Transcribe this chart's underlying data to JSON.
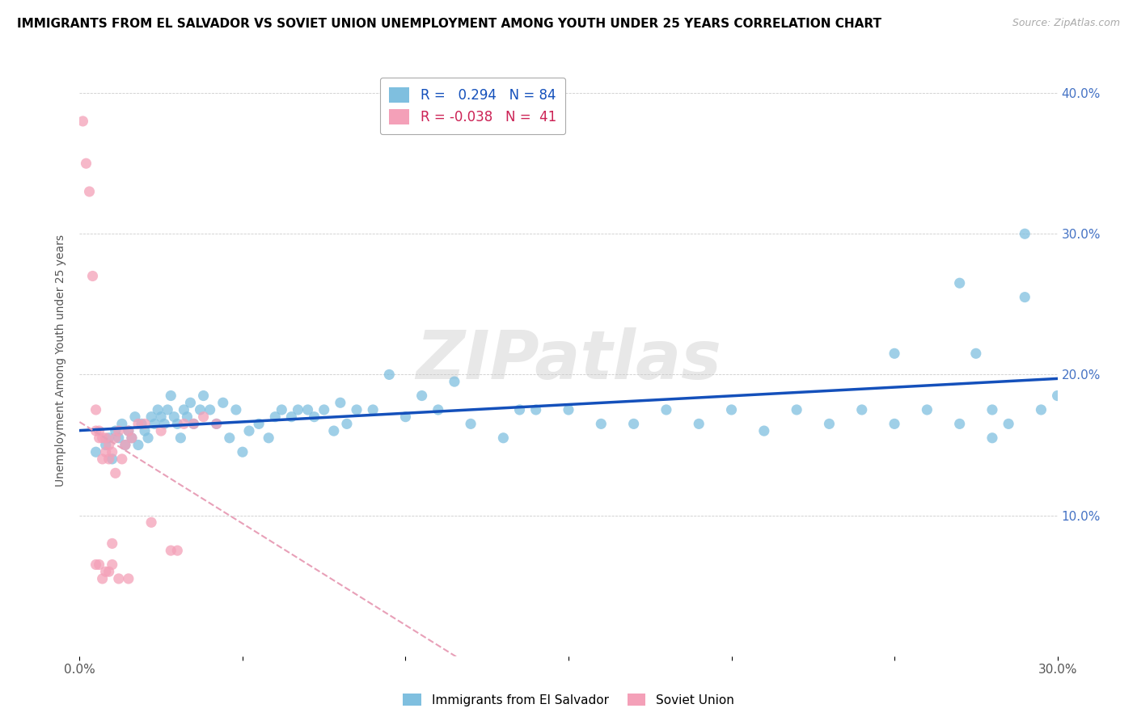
{
  "title": "IMMIGRANTS FROM EL SALVADOR VS SOVIET UNION UNEMPLOYMENT AMONG YOUTH UNDER 25 YEARS CORRELATION CHART",
  "source": "Source: ZipAtlas.com",
  "ylabel": "Unemployment Among Youth under 25 years",
  "xlim": [
    0.0,
    0.3
  ],
  "ylim": [
    0.0,
    0.42
  ],
  "xticks": [
    0.0,
    0.05,
    0.1,
    0.15,
    0.2,
    0.25,
    0.3
  ],
  "xtick_labels": [
    "0.0%",
    "",
    "",
    "",
    "",
    "",
    "30.0%"
  ],
  "yticks": [
    0.0,
    0.1,
    0.2,
    0.3,
    0.4
  ],
  "ytick_labels_right": [
    "",
    "10.0%",
    "20.0%",
    "30.0%",
    "40.0%"
  ],
  "blue_R": 0.294,
  "blue_N": 84,
  "pink_R": -0.038,
  "pink_N": 41,
  "blue_color": "#7fbfdf",
  "pink_color": "#f4a0b8",
  "blue_trend_color": "#1450bb",
  "pink_trend_color": "#e8a0b8",
  "watermark": "ZIPatlas",
  "legend_label_blue": "Immigrants from El Salvador",
  "legend_label_pink": "Soviet Union",
  "blue_x": [
    0.005,
    0.008,
    0.009,
    0.01,
    0.011,
    0.012,
    0.013,
    0.014,
    0.015,
    0.016,
    0.017,
    0.018,
    0.019,
    0.02,
    0.021,
    0.022,
    0.023,
    0.024,
    0.025,
    0.026,
    0.027,
    0.028,
    0.029,
    0.03,
    0.031,
    0.032,
    0.033,
    0.034,
    0.035,
    0.037,
    0.038,
    0.04,
    0.042,
    0.044,
    0.046,
    0.048,
    0.05,
    0.052,
    0.055,
    0.058,
    0.06,
    0.062,
    0.065,
    0.067,
    0.07,
    0.072,
    0.075,
    0.078,
    0.08,
    0.082,
    0.085,
    0.09,
    0.095,
    0.1,
    0.105,
    0.11,
    0.115,
    0.12,
    0.13,
    0.135,
    0.14,
    0.15,
    0.16,
    0.17,
    0.18,
    0.19,
    0.2,
    0.21,
    0.22,
    0.23,
    0.24,
    0.25,
    0.26,
    0.27,
    0.275,
    0.28,
    0.285,
    0.29,
    0.295,
    0.3,
    0.25,
    0.27,
    0.28,
    0.29
  ],
  "blue_y": [
    0.145,
    0.15,
    0.155,
    0.14,
    0.16,
    0.155,
    0.165,
    0.15,
    0.16,
    0.155,
    0.17,
    0.15,
    0.165,
    0.16,
    0.155,
    0.17,
    0.165,
    0.175,
    0.17,
    0.165,
    0.175,
    0.185,
    0.17,
    0.165,
    0.155,
    0.175,
    0.17,
    0.18,
    0.165,
    0.175,
    0.185,
    0.175,
    0.165,
    0.18,
    0.155,
    0.175,
    0.145,
    0.16,
    0.165,
    0.155,
    0.17,
    0.175,
    0.17,
    0.175,
    0.175,
    0.17,
    0.175,
    0.16,
    0.18,
    0.165,
    0.175,
    0.175,
    0.2,
    0.17,
    0.185,
    0.175,
    0.195,
    0.165,
    0.155,
    0.175,
    0.175,
    0.175,
    0.165,
    0.165,
    0.175,
    0.165,
    0.175,
    0.16,
    0.175,
    0.165,
    0.175,
    0.165,
    0.175,
    0.165,
    0.215,
    0.175,
    0.165,
    0.3,
    0.175,
    0.185,
    0.215,
    0.265,
    0.155,
    0.255
  ],
  "pink_x": [
    0.001,
    0.002,
    0.003,
    0.004,
    0.005,
    0.005,
    0.006,
    0.006,
    0.007,
    0.007,
    0.008,
    0.008,
    0.009,
    0.009,
    0.01,
    0.01,
    0.011,
    0.011,
    0.012,
    0.013,
    0.014,
    0.015,
    0.016,
    0.018,
    0.02,
    0.022,
    0.025,
    0.028,
    0.03,
    0.032,
    0.035,
    0.038,
    0.042,
    0.005,
    0.006,
    0.007,
    0.008,
    0.009,
    0.01,
    0.012,
    0.015
  ],
  "pink_y": [
    0.38,
    0.35,
    0.33,
    0.27,
    0.16,
    0.175,
    0.155,
    0.16,
    0.14,
    0.155,
    0.145,
    0.155,
    0.14,
    0.15,
    0.08,
    0.145,
    0.13,
    0.155,
    0.16,
    0.14,
    0.15,
    0.16,
    0.155,
    0.165,
    0.165,
    0.095,
    0.16,
    0.075,
    0.075,
    0.165,
    0.165,
    0.17,
    0.165,
    0.065,
    0.065,
    0.055,
    0.06,
    0.06,
    0.065,
    0.055,
    0.055
  ]
}
